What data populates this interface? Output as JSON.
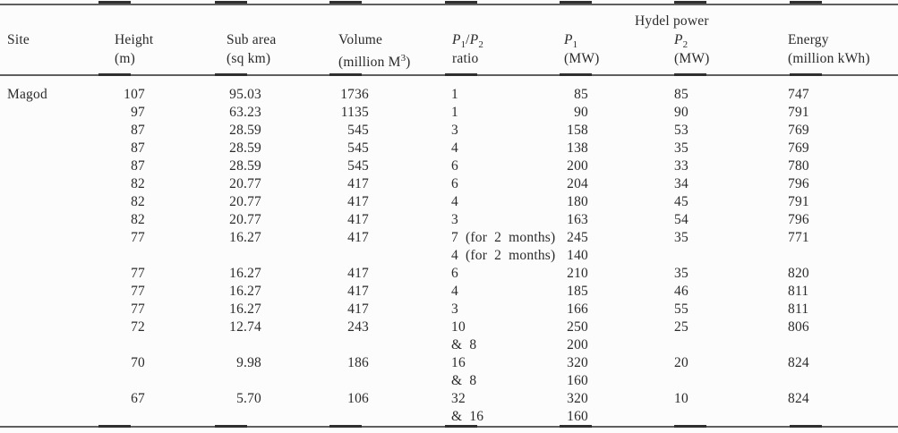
{
  "page": {
    "background": "#fcfcfc",
    "text_color": "#2b2b2b",
    "rule_color": "#5f5f5f"
  },
  "table": {
    "group_header": {
      "label": "Hydel power",
      "over_column": "p2"
    },
    "columns": [
      {
        "id": "site",
        "label": "Site",
        "unit": ""
      },
      {
        "id": "height",
        "label": "Height",
        "unit": "(m)"
      },
      {
        "id": "sub_area",
        "label": "Sub area",
        "unit": "(sq km)"
      },
      {
        "id": "volume",
        "label": "Volume",
        "unit_html": "(million M<sup>3</sup>)"
      },
      {
        "id": "p1_p2_ratio",
        "label_html": "<i>P</i><sub>1</sub>/<i>P</i><sub>2</sub>",
        "unit": "ratio"
      },
      {
        "id": "p1",
        "label_html": "<i>P</i><sub>1</sub>",
        "unit": "(MW)"
      },
      {
        "id": "p2",
        "label_html": "<i>P</i><sub>2</sub>",
        "unit": "(MW)"
      },
      {
        "id": "energy",
        "label": "Energy",
        "unit": "(million kWh)"
      }
    ],
    "rows": [
      [
        "Magod",
        "107",
        "95.03",
        "1736",
        "1",
        "85",
        "85",
        "747"
      ],
      [
        "",
        "97",
        "63.23",
        "1135",
        "1",
        "90",
        "90",
        "791"
      ],
      [
        "",
        "87",
        "28.59",
        "545",
        "3",
        "158",
        "53",
        "769"
      ],
      [
        "",
        "87",
        "28.59",
        "545",
        "4",
        "138",
        "35",
        "769"
      ],
      [
        "",
        "87",
        "28.59",
        "545",
        "6",
        "200",
        "33",
        "780"
      ],
      [
        "",
        "82",
        "20.77",
        "417",
        "6",
        "204",
        "34",
        "796"
      ],
      [
        "",
        "82",
        "20.77",
        "417",
        "4",
        "180",
        "45",
        "791"
      ],
      [
        "",
        "82",
        "20.77",
        "417",
        "3",
        "163",
        "54",
        "796"
      ],
      [
        "",
        "77",
        "16.27",
        "417",
        "7 (for 2 months)",
        "245",
        "35",
        "771"
      ],
      [
        "",
        "",
        "",
        "",
        "4 (for 2 months)",
        "140",
        "",
        ""
      ],
      [
        "",
        "77",
        "16.27",
        "417",
        "6",
        "210",
        "35",
        "820"
      ],
      [
        "",
        "77",
        "16.27",
        "417",
        "4",
        "185",
        "46",
        "811"
      ],
      [
        "",
        "77",
        "16.27",
        "417",
        "3",
        "166",
        "55",
        "811"
      ],
      [
        "",
        "72",
        "12.74",
        "243",
        "10",
        "250",
        "25",
        "806"
      ],
      [
        "",
        "",
        "",
        "",
        "& 8",
        "200",
        "",
        ""
      ],
      [
        "",
        "70",
        "9.98",
        "186",
        "16",
        "320",
        "20",
        "824"
      ],
      [
        "",
        "",
        "",
        "",
        "& 8",
        "160",
        "",
        ""
      ],
      [
        "",
        "67",
        "5.70",
        "106",
        "32",
        "320",
        "10",
        "824"
      ],
      [
        "",
        "",
        "",
        "",
        "& 16",
        "160",
        "",
        ""
      ]
    ]
  }
}
